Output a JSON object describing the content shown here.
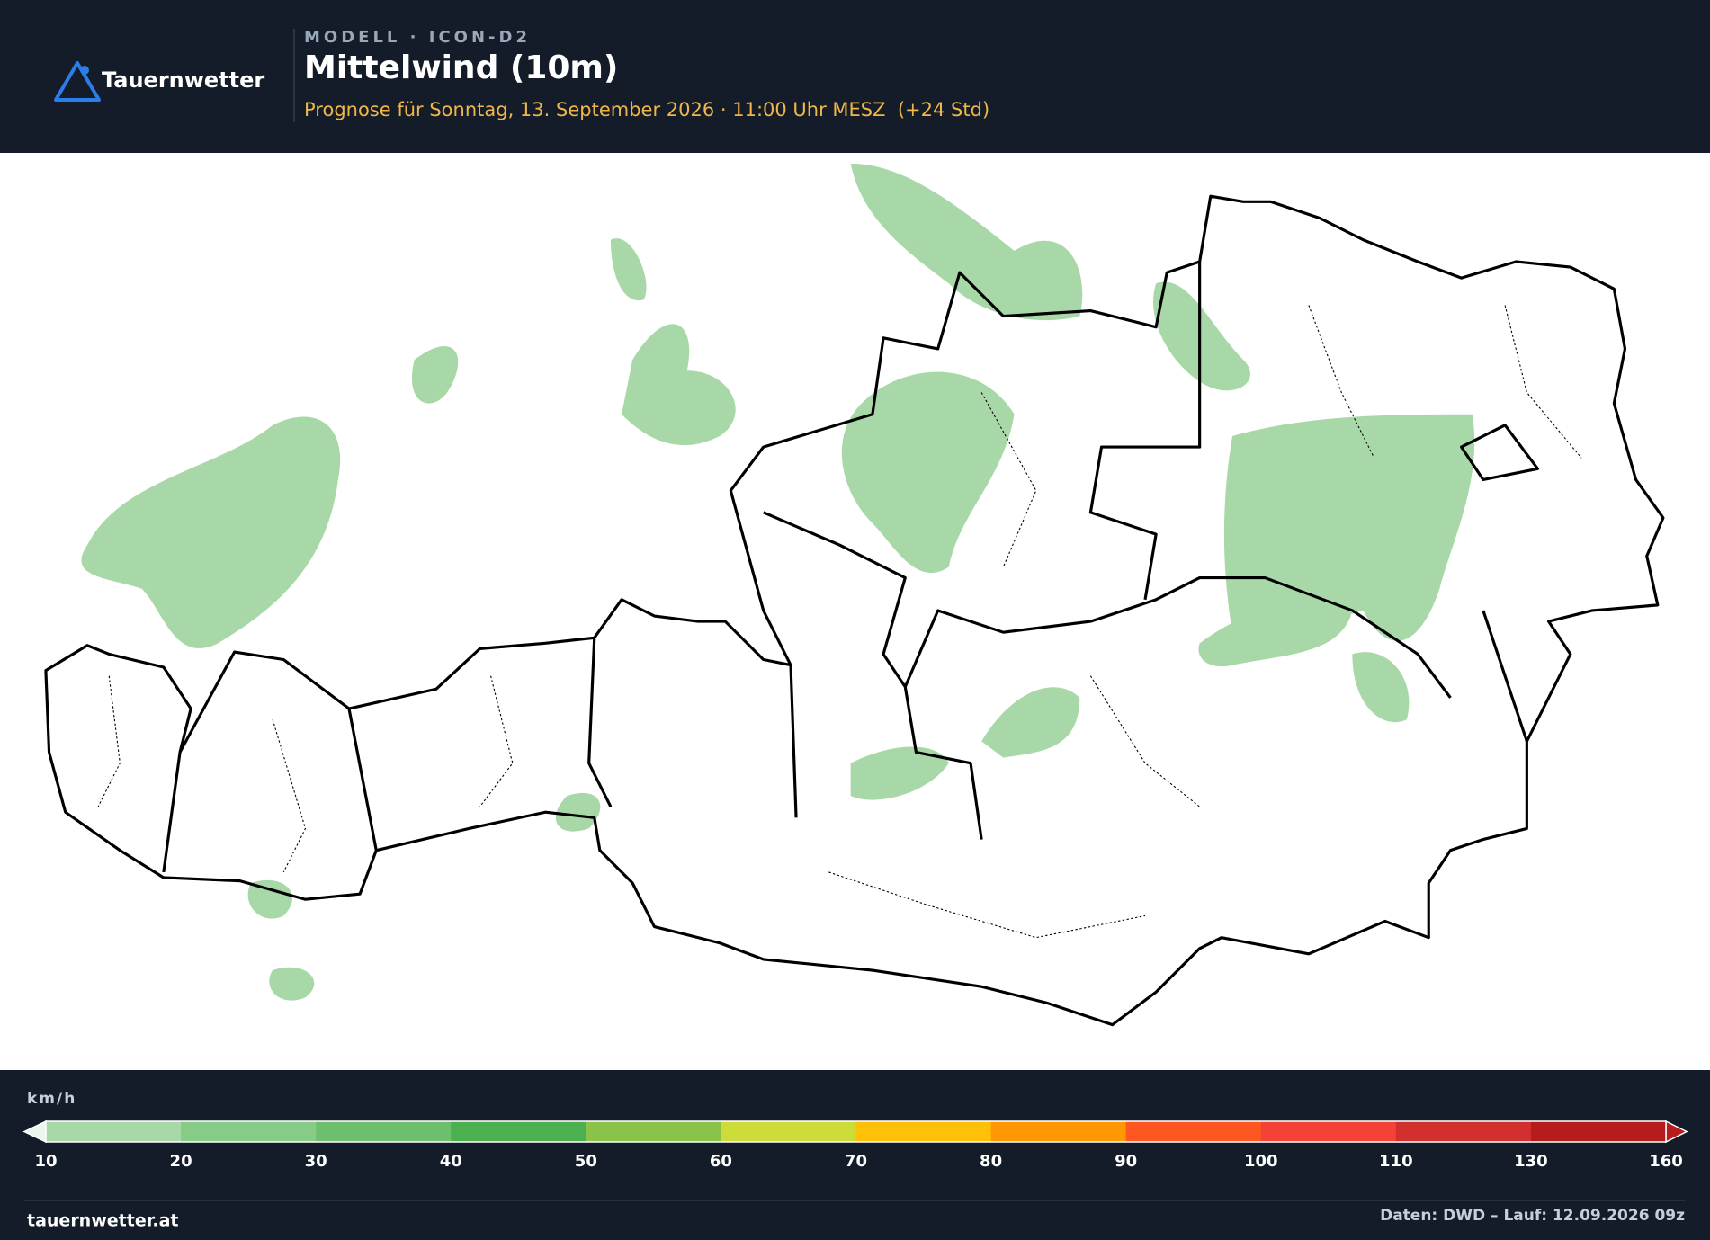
{
  "header": {
    "logo_text": "Tauernwetter",
    "kicker": "MODELL · ICON-D2",
    "title": "Mittelwind (10m)",
    "subtitle": "Prognose für Sonntag, 13. September 2026 · 11:00 Uhr MESZ  (+24 Std)"
  },
  "legend": {
    "unit": "km/h",
    "ticks": [
      10,
      20,
      30,
      40,
      50,
      60,
      70,
      80,
      90,
      100,
      110,
      130,
      160
    ],
    "colors": [
      "#a8d8a8",
      "#86cc86",
      "#6cbf6c",
      "#4caf50",
      "#8bc34a",
      "#cddc39",
      "#ffc107",
      "#ff9800",
      "#ff5722",
      "#f44336",
      "#d32f2f",
      "#b71c1c"
    ]
  },
  "footer": {
    "left": "tauernwetter.at",
    "right": "Daten: DWD – Lauf: 12.09.2026 09z"
  }
}
